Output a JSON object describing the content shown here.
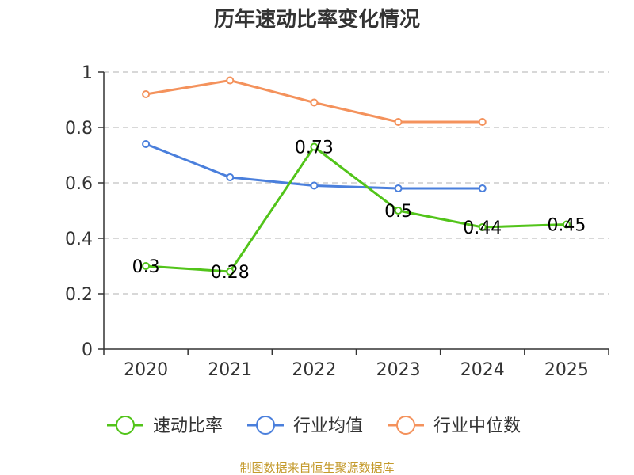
{
  "chart_data": {
    "type": "line",
    "title": "历年速动比率变化情况",
    "categories": [
      "2020",
      "2021",
      "2022",
      "2023",
      "2024",
      "2025"
    ],
    "ylim": [
      0,
      1
    ],
    "yticks": [
      "0",
      "0.2",
      "0.4",
      "0.6",
      "0.8",
      "1"
    ],
    "ytick_values": [
      0,
      0.2,
      0.4,
      0.6,
      0.8,
      1
    ],
    "grid": true,
    "legend_position": "bottom",
    "series": [
      {
        "name": "速动比率",
        "color": "#52c41a",
        "values": [
          0.3,
          0.28,
          0.73,
          0.5,
          0.44,
          0.45
        ],
        "labels": [
          "0.3",
          "0.28",
          "0.73",
          "0.5",
          "0.44",
          "0.45"
        ]
      },
      {
        "name": "行业均值",
        "color": "#4a7fdc",
        "values": [
          0.74,
          0.62,
          0.59,
          0.58,
          0.58,
          null
        ]
      },
      {
        "name": "行业中位数",
        "color": "#f4925c",
        "values": [
          0.92,
          0.97,
          0.89,
          0.82,
          0.82,
          null
        ]
      }
    ]
  },
  "source": {
    "text": "制图数据来自恒生聚源数据库",
    "color": "#c49a2c"
  }
}
